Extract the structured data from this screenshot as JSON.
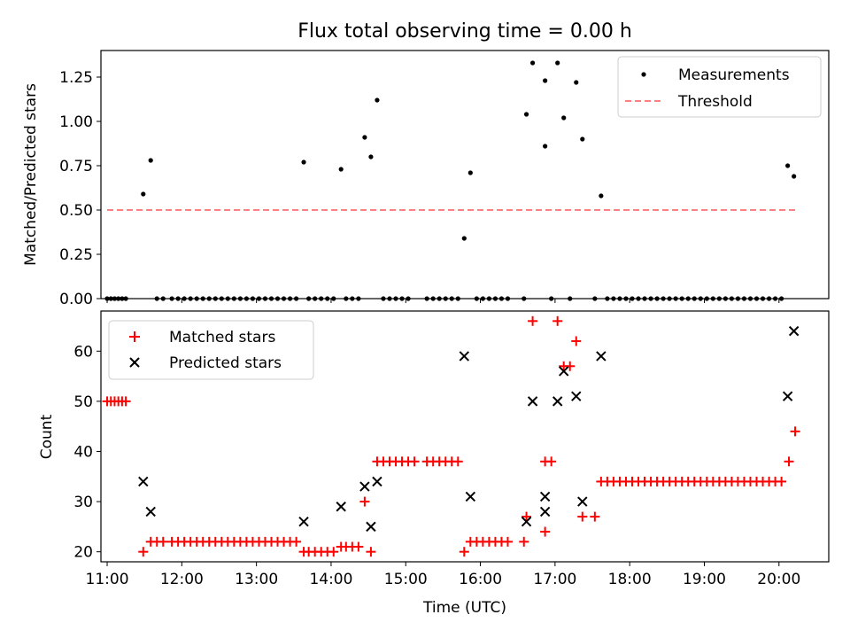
{
  "title": "Flux total observing time = 0.00 h",
  "colors": {
    "measurement": "#000000",
    "threshold": "#ff8080",
    "matched": "#ff0000",
    "predicted": "#000000",
    "axis": "#000000"
  },
  "chart_data": [
    {
      "type": "scatter",
      "title": "Flux total observing time = 0.00 h",
      "xlabel": "",
      "ylabel": "Matched/Predicted stars",
      "xlim": [
        "10:55",
        "20:40"
      ],
      "ylim": [
        0,
        1.4
      ],
      "yticks": [
        0.0,
        0.25,
        0.5,
        0.75,
        1.0,
        1.25
      ],
      "ytick_labels": [
        "0.00",
        "0.25",
        "0.50",
        "0.75",
        "1.00",
        "1.25"
      ],
      "legend_position": "top-right",
      "series": [
        {
          "name": "Measurements",
          "marker": "dot",
          "points": [
            [
              "11:00",
              0
            ],
            [
              "11:03",
              0
            ],
            [
              "11:06",
              0
            ],
            [
              "11:09",
              0
            ],
            [
              "11:12",
              0
            ],
            [
              "11:15",
              0
            ],
            [
              "11:29",
              0.59
            ],
            [
              "11:35",
              0.78
            ],
            [
              "11:40",
              0
            ],
            [
              "11:45",
              0
            ],
            [
              "11:52",
              0
            ],
            [
              "11:57",
              0
            ],
            [
              "12:02",
              0
            ],
            [
              "12:07",
              0
            ],
            [
              "12:12",
              0
            ],
            [
              "12:17",
              0
            ],
            [
              "12:22",
              0
            ],
            [
              "12:27",
              0
            ],
            [
              "12:32",
              0
            ],
            [
              "12:37",
              0
            ],
            [
              "12:42",
              0
            ],
            [
              "12:47",
              0
            ],
            [
              "12:52",
              0
            ],
            [
              "12:57",
              0
            ],
            [
              "13:02",
              0
            ],
            [
              "13:07",
              0
            ],
            [
              "13:12",
              0
            ],
            [
              "13:17",
              0
            ],
            [
              "13:22",
              0
            ],
            [
              "13:27",
              0
            ],
            [
              "13:32",
              0
            ],
            [
              "13:38",
              0.77
            ],
            [
              "13:42",
              0
            ],
            [
              "13:47",
              0
            ],
            [
              "13:52",
              0
            ],
            [
              "13:57",
              0
            ],
            [
              "14:02",
              0
            ],
            [
              "14:08",
              0.73
            ],
            [
              "14:12",
              0
            ],
            [
              "14:17",
              0
            ],
            [
              "14:22",
              0
            ],
            [
              "14:27",
              0.91
            ],
            [
              "14:32",
              0.8
            ],
            [
              "14:37",
              1.12
            ],
            [
              "14:42",
              0
            ],
            [
              "14:47",
              0
            ],
            [
              "14:52",
              0
            ],
            [
              "14:57",
              0
            ],
            [
              "15:02",
              0
            ],
            [
              "15:17",
              0
            ],
            [
              "15:22",
              0
            ],
            [
              "15:27",
              0
            ],
            [
              "15:32",
              0
            ],
            [
              "15:37",
              0
            ],
            [
              "15:42",
              0
            ],
            [
              "15:47",
              0.34
            ],
            [
              "15:52",
              0.71
            ],
            [
              "15:57",
              0
            ],
            [
              "16:02",
              0
            ],
            [
              "16:07",
              0
            ],
            [
              "16:12",
              0
            ],
            [
              "16:17",
              0
            ],
            [
              "16:22",
              0
            ],
            [
              "16:35",
              0
            ],
            [
              "16:37",
              1.04
            ],
            [
              "16:42",
              1.33
            ],
            [
              "16:52",
              1.23
            ],
            [
              "16:52",
              0.86
            ],
            [
              "16:57",
              0
            ],
            [
              "17:02",
              1.33
            ],
            [
              "17:07",
              1.02
            ],
            [
              "17:12",
              0
            ],
            [
              "17:17",
              1.22
            ],
            [
              "17:22",
              0.9
            ],
            [
              "17:32",
              0
            ],
            [
              "17:37",
              0.58
            ],
            [
              "17:42",
              0
            ],
            [
              "17:47",
              0
            ],
            [
              "17:52",
              0
            ],
            [
              "17:57",
              0
            ],
            [
              "18:02",
              0
            ],
            [
              "18:07",
              0
            ],
            [
              "18:12",
              0
            ],
            [
              "18:17",
              0
            ],
            [
              "18:22",
              0
            ],
            [
              "18:27",
              0
            ],
            [
              "18:32",
              0
            ],
            [
              "18:37",
              0
            ],
            [
              "18:42",
              0
            ],
            [
              "18:47",
              0
            ],
            [
              "18:52",
              0
            ],
            [
              "18:57",
              0
            ],
            [
              "19:02",
              0
            ],
            [
              "19:07",
              0
            ],
            [
              "19:12",
              0
            ],
            [
              "19:17",
              0
            ],
            [
              "19:22",
              0
            ],
            [
              "19:27",
              0
            ],
            [
              "19:32",
              0
            ],
            [
              "19:37",
              0
            ],
            [
              "19:42",
              0
            ],
            [
              "19:47",
              0
            ],
            [
              "19:52",
              0
            ],
            [
              "19:57",
              0
            ],
            [
              "20:02",
              0
            ],
            [
              "20:07",
              0.75
            ],
            [
              "20:12",
              0.69
            ]
          ]
        },
        {
          "name": "Threshold",
          "style": "dashed",
          "points": [
            [
              "11:00",
              0.5
            ],
            [
              "20:15",
              0.5
            ]
          ]
        }
      ]
    },
    {
      "type": "scatter",
      "xlabel": "Time (UTC)",
      "ylabel": "Count",
      "xlim": [
        "10:55",
        "20:40"
      ],
      "ylim": [
        18,
        68
      ],
      "yticks": [
        20,
        30,
        40,
        50,
        60
      ],
      "xticks": [
        "11:00",
        "12:00",
        "13:00",
        "14:00",
        "15:00",
        "16:00",
        "17:00",
        "18:00",
        "19:00",
        "20:00"
      ],
      "legend_position": "top-left",
      "series": [
        {
          "name": "Matched stars",
          "marker": "plus",
          "points": [
            [
              "11:00",
              50
            ],
            [
              "11:03",
              50
            ],
            [
              "11:06",
              50
            ],
            [
              "11:09",
              50
            ],
            [
              "11:12",
              50
            ],
            [
              "11:15",
              50
            ],
            [
              "11:29",
              20
            ],
            [
              "11:35",
              22
            ],
            [
              "11:40",
              22
            ],
            [
              "11:45",
              22
            ],
            [
              "11:52",
              22
            ],
            [
              "11:57",
              22
            ],
            [
              "12:02",
              22
            ],
            [
              "12:07",
              22
            ],
            [
              "12:12",
              22
            ],
            [
              "12:17",
              22
            ],
            [
              "12:22",
              22
            ],
            [
              "12:27",
              22
            ],
            [
              "12:32",
              22
            ],
            [
              "12:37",
              22
            ],
            [
              "12:42",
              22
            ],
            [
              "12:47",
              22
            ],
            [
              "12:52",
              22
            ],
            [
              "12:57",
              22
            ],
            [
              "13:02",
              22
            ],
            [
              "13:07",
              22
            ],
            [
              "13:12",
              22
            ],
            [
              "13:17",
              22
            ],
            [
              "13:22",
              22
            ],
            [
              "13:27",
              22
            ],
            [
              "13:32",
              22
            ],
            [
              "13:38",
              20
            ],
            [
              "13:42",
              20
            ],
            [
              "13:47",
              20
            ],
            [
              "13:52",
              20
            ],
            [
              "13:57",
              20
            ],
            [
              "14:02",
              20
            ],
            [
              "14:08",
              21
            ],
            [
              "14:12",
              21
            ],
            [
              "14:17",
              21
            ],
            [
              "14:22",
              21
            ],
            [
              "14:27",
              30
            ],
            [
              "14:32",
              20
            ],
            [
              "14:37",
              38
            ],
            [
              "14:42",
              38
            ],
            [
              "14:47",
              38
            ],
            [
              "14:52",
              38
            ],
            [
              "14:57",
              38
            ],
            [
              "15:02",
              38
            ],
            [
              "15:07",
              38
            ],
            [
              "15:17",
              38
            ],
            [
              "15:22",
              38
            ],
            [
              "15:27",
              38
            ],
            [
              "15:32",
              38
            ],
            [
              "15:37",
              38
            ],
            [
              "15:42",
              38
            ],
            [
              "15:47",
              20
            ],
            [
              "15:52",
              22
            ],
            [
              "15:57",
              22
            ],
            [
              "16:02",
              22
            ],
            [
              "16:07",
              22
            ],
            [
              "16:12",
              22
            ],
            [
              "16:17",
              22
            ],
            [
              "16:22",
              22
            ],
            [
              "16:35",
              22
            ],
            [
              "16:37",
              27
            ],
            [
              "16:42",
              66
            ],
            [
              "16:52",
              24
            ],
            [
              "16:52",
              38
            ],
            [
              "16:57",
              38
            ],
            [
              "17:02",
              66
            ],
            [
              "17:07",
              57
            ],
            [
              "17:12",
              57
            ],
            [
              "17:17",
              62
            ],
            [
              "17:22",
              27
            ],
            [
              "17:32",
              27
            ],
            [
              "17:37",
              34
            ],
            [
              "17:42",
              34
            ],
            [
              "17:47",
              34
            ],
            [
              "17:52",
              34
            ],
            [
              "17:57",
              34
            ],
            [
              "18:02",
              34
            ],
            [
              "18:07",
              34
            ],
            [
              "18:12",
              34
            ],
            [
              "18:17",
              34
            ],
            [
              "18:22",
              34
            ],
            [
              "18:27",
              34
            ],
            [
              "18:32",
              34
            ],
            [
              "18:37",
              34
            ],
            [
              "18:42",
              34
            ],
            [
              "18:47",
              34
            ],
            [
              "18:52",
              34
            ],
            [
              "18:57",
              34
            ],
            [
              "19:02",
              34
            ],
            [
              "19:07",
              34
            ],
            [
              "19:12",
              34
            ],
            [
              "19:17",
              34
            ],
            [
              "19:22",
              34
            ],
            [
              "19:27",
              34
            ],
            [
              "19:32",
              34
            ],
            [
              "19:37",
              34
            ],
            [
              "19:42",
              34
            ],
            [
              "19:47",
              34
            ],
            [
              "19:52",
              34
            ],
            [
              "19:57",
              34
            ],
            [
              "20:02",
              34
            ],
            [
              "20:08",
              38
            ],
            [
              "20:13",
              44
            ]
          ]
        },
        {
          "name": "Predicted stars",
          "marker": "x",
          "points": [
            [
              "11:29",
              34
            ],
            [
              "11:35",
              28
            ],
            [
              "13:38",
              26
            ],
            [
              "14:08",
              29
            ],
            [
              "14:27",
              33
            ],
            [
              "14:32",
              25
            ],
            [
              "14:37",
              34
            ],
            [
              "15:47",
              59
            ],
            [
              "15:52",
              31
            ],
            [
              "16:37",
              26
            ],
            [
              "16:42",
              50
            ],
            [
              "16:52",
              28
            ],
            [
              "16:52",
              31
            ],
            [
              "16:57",
              ""
            ],
            [
              "17:02",
              50
            ],
            [
              "17:07",
              56
            ],
            [
              "17:17",
              51
            ],
            [
              "17:22",
              30
            ],
            [
              "17:37",
              59
            ],
            [
              "20:07",
              51
            ],
            [
              "20:12",
              64
            ]
          ]
        }
      ]
    }
  ]
}
